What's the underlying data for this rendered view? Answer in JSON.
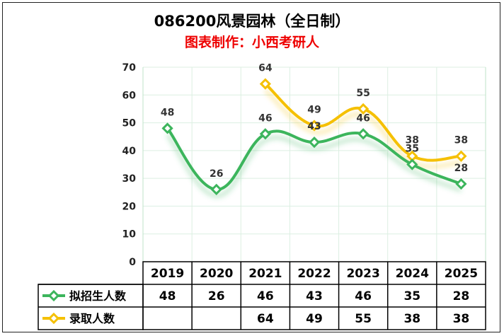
{
  "chart_data": {
    "type": "line",
    "title": "086200风景园林（全日制）",
    "subtitle": "图表制作：小西考研人",
    "categories": [
      "2019",
      "2020",
      "2021",
      "2022",
      "2023",
      "2024",
      "2025"
    ],
    "ylim": [
      0,
      70
    ],
    "yticks": [
      0,
      10,
      20,
      30,
      40,
      50,
      60,
      70
    ],
    "grid": true,
    "legend": "bottom-left data table",
    "series": [
      {
        "name": "拟招生人数",
        "color": "#3cb55c",
        "values": [
          48,
          26,
          46,
          43,
          46,
          35,
          28
        ],
        "table_values": [
          "48",
          "26",
          "46",
          "43",
          "46",
          "35",
          "28"
        ]
      },
      {
        "name": "录取人数",
        "color": "#f5c000",
        "values": [
          null,
          null,
          64,
          49,
          55,
          38,
          38
        ],
        "table_values": [
          "",
          "",
          "64",
          "49",
          "55",
          "38",
          "38"
        ]
      }
    ]
  }
}
